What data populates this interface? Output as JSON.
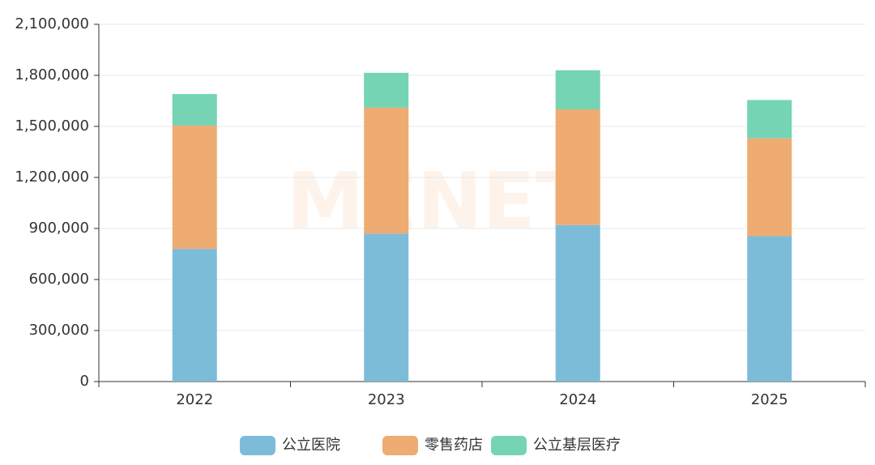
{
  "chart_data": {
    "type": "bar",
    "stacked": true,
    "watermark": "MENET",
    "categories": [
      "2022",
      "2023",
      "2024",
      "2025"
    ],
    "series": [
      {
        "name": "公立医院",
        "color": "#7dbcd9",
        "values": [
          780000,
          870000,
          920000,
          855000
        ]
      },
      {
        "name": "零售药店",
        "color": "#eeab72",
        "values": [
          725000,
          740000,
          680000,
          575000
        ]
      },
      {
        "name": "公立基层医疗",
        "color": "#74d4b3",
        "values": [
          185000,
          205000,
          230000,
          225000
        ]
      }
    ],
    "ylim": [
      0,
      2100000
    ],
    "yticks": [
      0,
      {
        "value": 300000,
        "label": "300,000"
      },
      {
        "value": 600000,
        "label": "600,000"
      },
      {
        "value": 900000,
        "label": "900,000"
      },
      {
        "value": 1200000,
        "label": "1,200,000"
      },
      {
        "value": 1500000,
        "label": "1,500,000"
      },
      {
        "value": 1800000,
        "label": "1,800,000"
      },
      {
        "value": 2100000,
        "label": "2,100,000"
      }
    ],
    "grid": true,
    "legend": "bottom"
  }
}
